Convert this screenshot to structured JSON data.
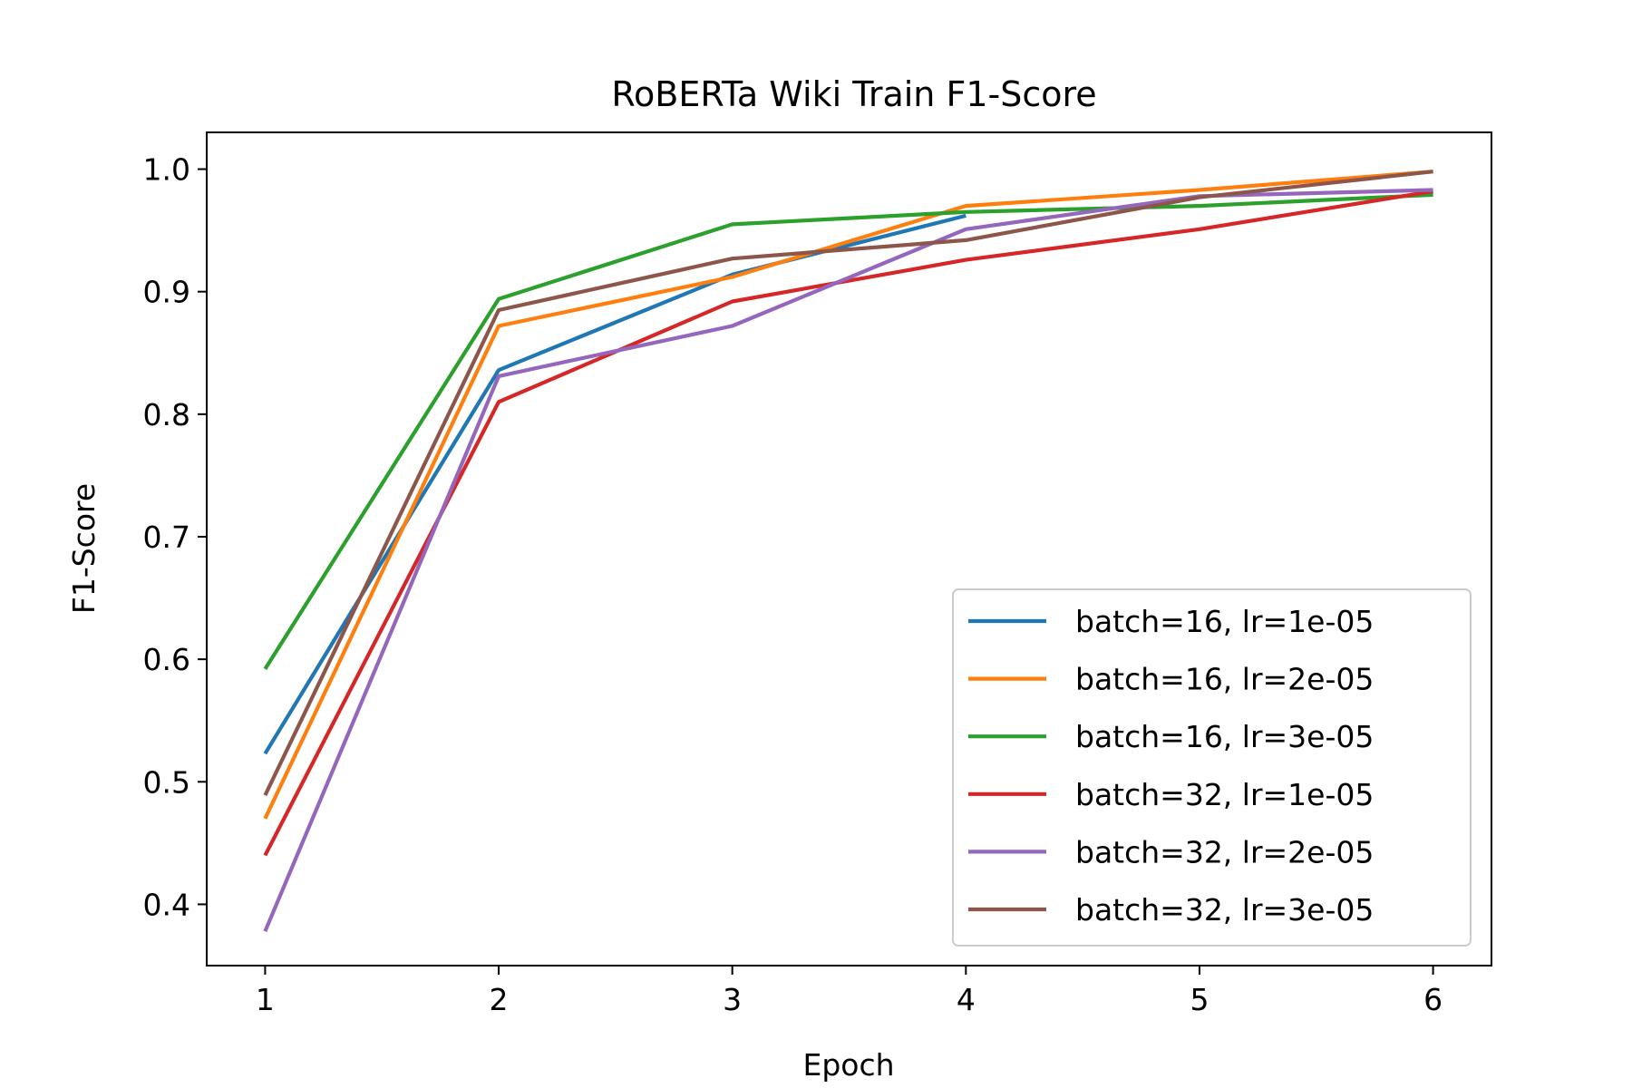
{
  "chart_data": {
    "type": "line",
    "title": "RoBERTa Wiki Train F1-Score",
    "xlabel": "Epoch",
    "ylabel": "F1-Score",
    "xlim": [
      0.75,
      6.25
    ],
    "ylim": [
      0.35,
      1.03
    ],
    "xticks": [
      1,
      2,
      3,
      4,
      5,
      6
    ],
    "xtick_labels": [
      "1",
      "2",
      "3",
      "4",
      "5",
      "6"
    ],
    "yticks": [
      0.4,
      0.5,
      0.6,
      0.7,
      0.8,
      0.9,
      1.0
    ],
    "ytick_labels": [
      "0.4",
      "0.5",
      "0.6",
      "0.7",
      "0.8",
      "0.9",
      "1.0"
    ],
    "grid": false,
    "legend_position": "lower-right",
    "series": [
      {
        "name": "batch=16, lr=1e-05",
        "color": "#1f77b4",
        "x": [
          1,
          2,
          3,
          4
        ],
        "y": [
          0.523,
          0.836,
          0.914,
          0.962
        ]
      },
      {
        "name": "batch=16, lr=2e-05",
        "color": "#ff7f0e",
        "x": [
          1,
          2,
          3,
          4,
          5,
          6
        ],
        "y": [
          0.47,
          0.872,
          0.912,
          0.97,
          0.983,
          0.998
        ]
      },
      {
        "name": "batch=16, lr=3e-05",
        "color": "#2ca02c",
        "x": [
          1,
          2,
          3,
          4,
          5,
          6
        ],
        "y": [
          0.592,
          0.894,
          0.955,
          0.965,
          0.97,
          0.979
        ]
      },
      {
        "name": "batch=32, lr=1e-05",
        "color": "#d62728",
        "x": [
          1,
          2,
          3,
          4,
          5,
          6
        ],
        "y": [
          0.44,
          0.81,
          0.892,
          0.926,
          0.951,
          0.982
        ]
      },
      {
        "name": "batch=32, lr=2e-05",
        "color": "#9467bd",
        "x": [
          1,
          2,
          3,
          4,
          5,
          6
        ],
        "y": [
          0.378,
          0.831,
          0.872,
          0.951,
          0.978,
          0.983
        ]
      },
      {
        "name": "batch=32, lr=3e-05",
        "color": "#8c564b",
        "x": [
          1,
          2,
          3,
          4,
          5,
          6
        ],
        "y": [
          0.489,
          0.885,
          0.927,
          0.942,
          0.977,
          0.998
        ]
      }
    ]
  }
}
